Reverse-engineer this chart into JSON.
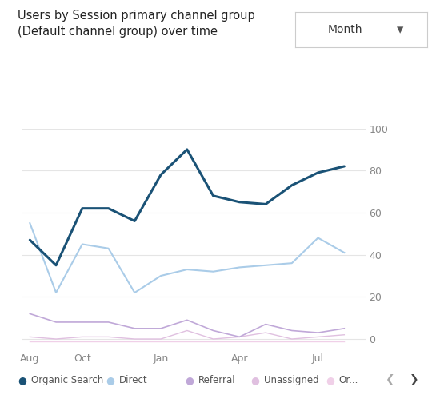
{
  "title": "Users by Session primary channel group\n(Default channel group) over time",
  "dropdown_label": "Month",
  "x_labels": [
    "Aug",
    "Oct",
    "Jan",
    "Apr",
    "Jul"
  ],
  "x_ticks_positions": [
    0,
    2,
    5,
    8,
    11
  ],
  "x_points": [
    0,
    1,
    2,
    3,
    4,
    5,
    6,
    7,
    8,
    9,
    10,
    11,
    12
  ],
  "organic_search": [
    47,
    35,
    62,
    62,
    56,
    78,
    90,
    68,
    65,
    64,
    73,
    79,
    82
  ],
  "direct": [
    55,
    22,
    45,
    43,
    22,
    30,
    33,
    32,
    34,
    35,
    36,
    48,
    41
  ],
  "referral": [
    12,
    8,
    8,
    8,
    5,
    5,
    9,
    4,
    1,
    7,
    4,
    3,
    5
  ],
  "unassigned": [
    1,
    0,
    1,
    1,
    0,
    0,
    4,
    0,
    1,
    3,
    0,
    1,
    2
  ],
  "organic2": [
    -1,
    -1,
    -1,
    -1,
    -1,
    -1,
    -1,
    -1,
    -1,
    -1,
    -1,
    -1,
    -1
  ],
  "ylim": [
    -5,
    100
  ],
  "yticks": [
    0,
    20,
    40,
    60,
    80,
    100
  ],
  "colors": {
    "organic_search": "#1a5276",
    "direct": "#aacce8",
    "referral": "#c0a8d8",
    "unassigned": "#e0c0e0",
    "organic2": "#f0d0e8",
    "grid": "#e5e5e5",
    "axis_text": "#888888",
    "title_text": "#222222",
    "background": "#ffffff",
    "dropdown_bg": "#ffffff",
    "dropdown_border": "#cccccc"
  },
  "legend_entries": [
    "Organic Search",
    "Direct",
    "Referral",
    "Unassigned",
    "Or..."
  ],
  "figsize": [
    5.5,
    4.94
  ],
  "dpi": 100
}
